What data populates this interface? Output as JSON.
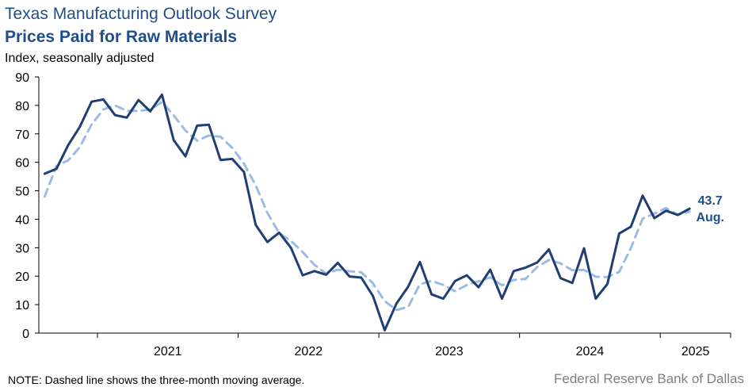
{
  "header": {
    "title": "Texas Manufacturing Outlook Survey",
    "subtitle": "Prices Paid for Raw Materials",
    "ylabel": "Index, seasonally adjusted"
  },
  "footer": {
    "note": "NOTE: Dashed line shows the three-month  moving average.",
    "source": "Federal Reserve Bank of Dallas"
  },
  "colors": {
    "index_line": "#1f3f73",
    "moving_average": "#9dbbe2",
    "title": "#1f4e8c"
  },
  "chart_data": {
    "type": "line",
    "title": "Prices Paid for Raw Materials",
    "ylabel": "Index, seasonally adjusted",
    "ylim": [
      0,
      90
    ],
    "yticks": [
      0,
      10,
      20,
      30,
      40,
      50,
      60,
      70,
      80,
      90
    ],
    "xticks": [
      "2021",
      "2022",
      "2023",
      "2024",
      "2025"
    ],
    "x_start": "2020-08",
    "x_end": "2025-08",
    "grid": false,
    "last_value_label": "43.7",
    "last_month_label": "Aug.",
    "series": [
      {
        "style": "solid",
        "values": [
          56,
          57.7,
          66,
          72.5,
          81.3,
          82.1,
          76.6,
          75.7,
          81.9,
          77.9,
          83.8,
          67.8,
          62.1,
          72.9,
          73.2,
          60.8,
          61.2,
          56.6,
          38,
          32,
          35.3,
          30,
          20.3,
          21.8,
          20.5,
          24.7,
          19.9,
          19.5,
          13,
          1,
          10.4,
          16.3,
          25,
          13.6,
          12.1,
          18.3,
          20.3,
          16.1,
          22.3,
          12.1,
          21.8,
          23,
          24.8,
          29.4,
          19.3,
          17.6,
          29.8,
          12.1,
          17.3,
          35,
          37.4,
          48.3,
          40.4,
          43,
          41.5,
          43.7
        ]
      },
      {
        "name": "Three-month moving average",
        "style": "dashed",
        "values": [
          48,
          58.7,
          60.7,
          65.4,
          73.3,
          78.6,
          80,
          78.1,
          78.1,
          78.5,
          81.2,
          76.5,
          71.2,
          67.6,
          69.4,
          69,
          65.1,
          59.5,
          51.9,
          42.2,
          35.1,
          32.4,
          28.5,
          24,
          20.9,
          22.3,
          21.7,
          21.4,
          17.5,
          11.2,
          8.1,
          9.2,
          17.2,
          18.3,
          16.9,
          14.7,
          16.9,
          18.2,
          19.6,
          16.8,
          18.7,
          19,
          23.2,
          25.7,
          24.5,
          22.1,
          22.2,
          19.8,
          19.7,
          21.5,
          29.9,
          40.2,
          42,
          43.9,
          41.6,
          42.7
        ]
      }
    ]
  }
}
